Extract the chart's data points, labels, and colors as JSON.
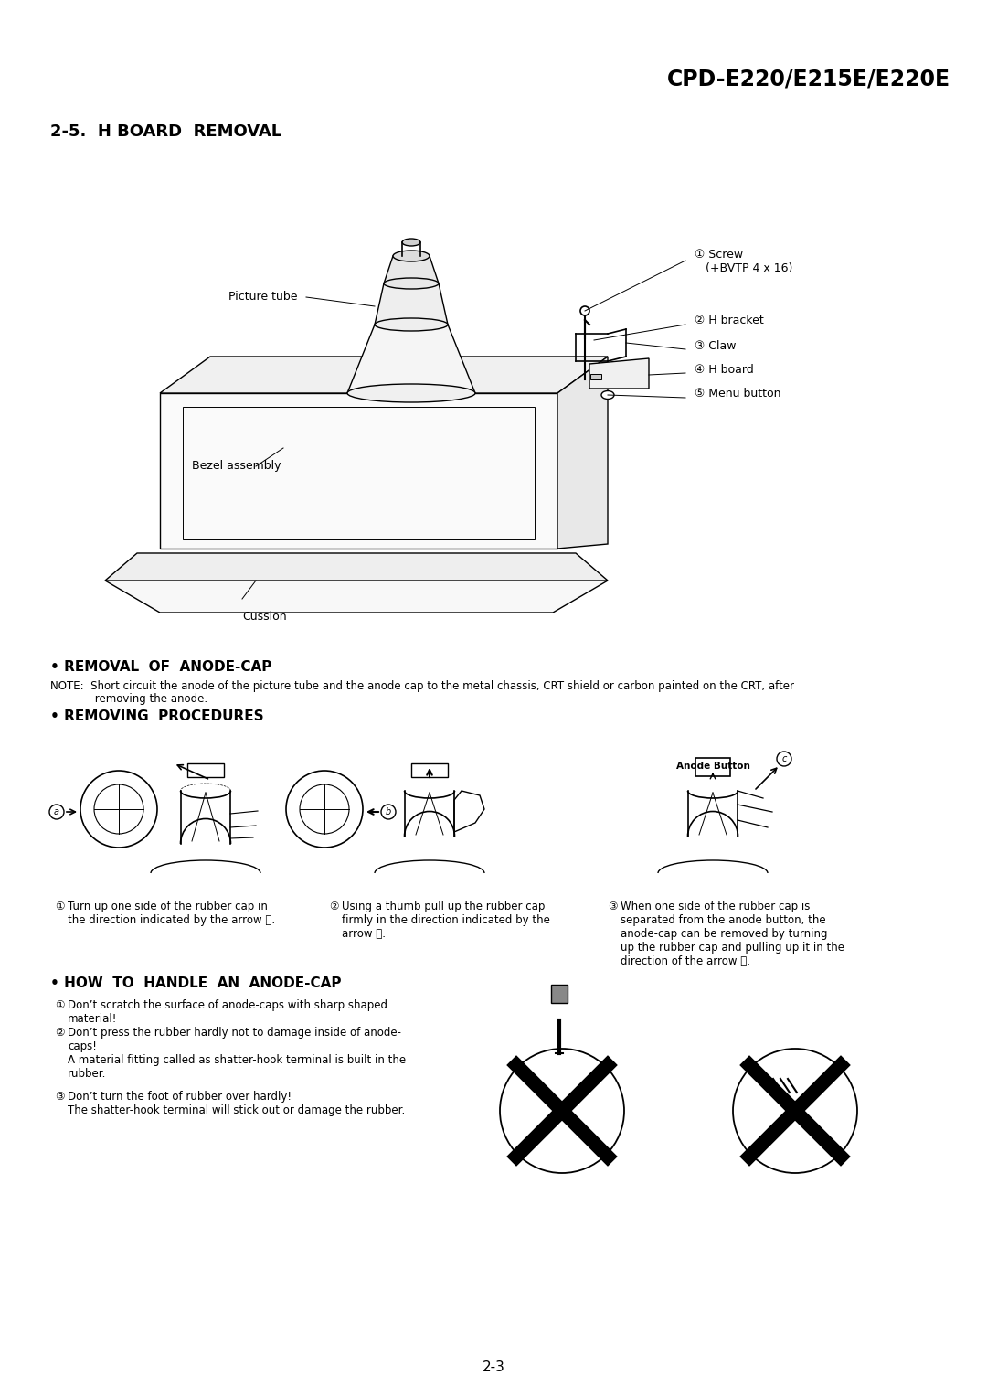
{
  "bg_color": "#ffffff",
  "header_model": "CPD-E220/E215E/E220E",
  "section_title": "2-5.  H BOARD  REMOVAL",
  "removal_title": "• REMOVAL  OF  ANODE-CAP",
  "removal_note_line1": "NOTE:  Short circuit the anode of the picture tube and the anode cap to the metal chassis, CRT shield or carbon painted on the CRT, after",
  "removal_note_line2": "             removing the anode.",
  "removing_title": "• REMOVING  PROCEDURES",
  "proc1_num": "①",
  "proc1_text": "Turn up one side of the rubber cap in\nthe direction indicated by the arrow Ⓐ.",
  "proc2_num": "②",
  "proc2_text": "Using a thumb pull up the rubber cap\nfirmly in the direction indicated by the\narrow Ⓑ.",
  "proc3_num": "③",
  "proc3_text": "When one side of the rubber cap is\nseparated from the anode button, the\nanode-cap can be removed by turning\nup the rubber cap and pulling up it in the\ndirection of the arrow Ⓒ.",
  "handle_title": "• HOW  TO  HANDLE  AN  ANODE-CAP",
  "handle1_num": "①",
  "handle1_text": "Don’t scratch the surface of anode-caps with sharp shaped\nmaterial!",
  "handle2_num": "②",
  "handle2_text": "Don’t press the rubber hardly not to damage inside of anode-\ncaps!\nA material fitting called as shatter-hook terminal is built in the\nrubber.",
  "handle3_num": "③",
  "handle3_text": "Don’t turn the foot of rubber over hardly!\nThe shatter-hook terminal will stick out or damage the rubber.",
  "page_num": "2-3",
  "lbl_screw": "① Screw\n   (+BVTP 4 x 16)",
  "lbl_h_bracket": "② H bracket",
  "lbl_claw": "③ Claw",
  "lbl_h_board": "④ H board",
  "lbl_menu_button": "⑤ Menu button",
  "lbl_picture_tube": "Picture tube",
  "lbl_bezel_assembly": "Bezel assembly",
  "lbl_cussion": "Cussion",
  "anode_button_label": "Anode Button"
}
